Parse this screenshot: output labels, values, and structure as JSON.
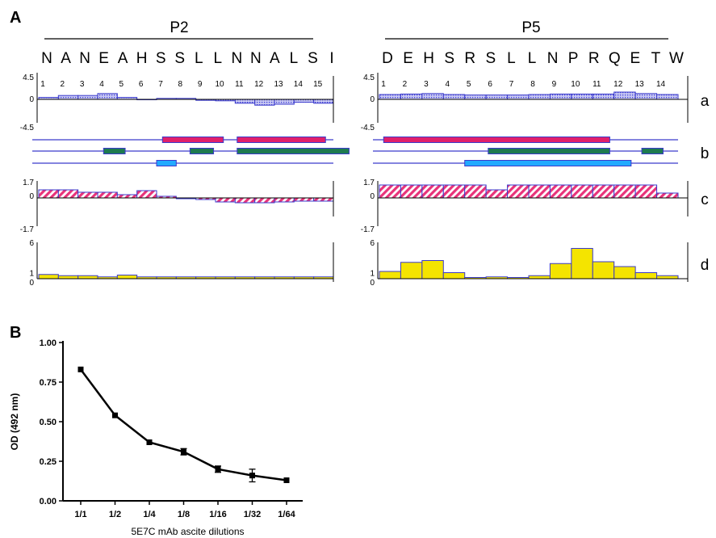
{
  "panel_a": {
    "label": "A",
    "colors": {
      "hydro": "#3f3fd8",
      "secondary_red": "#e0206a",
      "secondary_green": "#1e7a50",
      "secondary_cyan": "#22aaff",
      "access": "#e8337a",
      "antigenic": "#f4e400",
      "outline": "#3b3bcc"
    },
    "row_labels": [
      "a",
      "b",
      "c",
      "d"
    ],
    "peptides": [
      {
        "title": "P2",
        "residues": [
          "N",
          "A",
          "N",
          "E",
          "A",
          "H",
          "S",
          "S",
          "L",
          "L",
          "N",
          "N",
          "A",
          "L",
          "S",
          "I"
        ],
        "positions": [
          "1",
          "2",
          "3",
          "4",
          "5",
          "6",
          "7",
          "8",
          "9",
          "10",
          "11",
          "12",
          "13",
          "14",
          "15"
        ],
        "hydro_ticks": [
          "4.5",
          "0",
          "-4.5"
        ],
        "hydro": [
          0.4,
          0.8,
          0.8,
          1.2,
          0.4,
          0.0,
          0.2,
          0.2,
          -0.2,
          -0.3,
          -0.8,
          -1.2,
          -1.0,
          -0.6,
          -0.8
        ],
        "access_ticks": [
          "1.7",
          "0",
          "-1.7"
        ],
        "access": [
          1.0,
          1.0,
          0.7,
          0.7,
          0.4,
          0.9,
          0.2,
          -0.1,
          -0.2,
          -0.5,
          -0.6,
          -0.6,
          -0.5,
          -0.4,
          -0.4
        ],
        "antigen_ticks": [
          "6",
          "1",
          "0"
        ],
        "antigen": [
          0.7,
          0.5,
          0.5,
          0.3,
          0.6,
          0.3,
          0.3,
          0.3,
          0.3,
          0.3,
          0.3,
          0.3,
          0.3,
          0.3,
          0.3
        ]
      },
      {
        "title": "P5",
        "residues": [
          "D",
          "E",
          "H",
          "S",
          "R",
          "S",
          "L",
          "L",
          "N",
          "P",
          "R",
          "Q",
          "E",
          "T",
          "W"
        ],
        "positions": [
          "1",
          "2",
          "3",
          "4",
          "5",
          "6",
          "7",
          "8",
          "9",
          "10",
          "11",
          "12",
          "13",
          "14"
        ],
        "hydro_ticks": [
          "4.5",
          "0",
          "-4.5"
        ],
        "hydro": [
          1.0,
          1.1,
          1.2,
          1.0,
          0.9,
          0.9,
          0.9,
          1.0,
          1.1,
          1.1,
          1.1,
          1.5,
          1.2,
          1.0
        ],
        "access_ticks": [
          "1.7",
          "0",
          "-1.7"
        ],
        "access": [
          1.6,
          1.6,
          1.6,
          1.6,
          1.6,
          1.0,
          1.6,
          1.6,
          1.6,
          1.6,
          1.6,
          1.6,
          1.6,
          0.6
        ],
        "antigen_ticks": [
          "6",
          "1",
          "0"
        ],
        "antigen": [
          1.2,
          2.7,
          3.0,
          1.0,
          0.2,
          0.3,
          0.2,
          0.5,
          2.5,
          5.0,
          2.8,
          2.0,
          1.0,
          0.5
        ]
      }
    ]
  },
  "chart_data": {
    "type": "line",
    "panel_label": "B",
    "title": "",
    "xlabel": "5E7C mAb ascite dilutions",
    "ylabel": "OD (492 nm)",
    "categories": [
      "1/1",
      "1/2",
      "1/4",
      "1/8",
      "1/16",
      "1/32",
      "1/64"
    ],
    "values": [
      0.83,
      0.54,
      0.37,
      0.31,
      0.2,
      0.16,
      0.13
    ],
    "errors": [
      0.005,
      0.005,
      0.005,
      0.02,
      0.02,
      0.04,
      0.005
    ],
    "ylim": [
      0,
      1.0
    ],
    "yticks": [
      "0.00",
      "0.25",
      "0.50",
      "0.75",
      "1.00"
    ],
    "grid": false,
    "line_color": "#000000"
  }
}
